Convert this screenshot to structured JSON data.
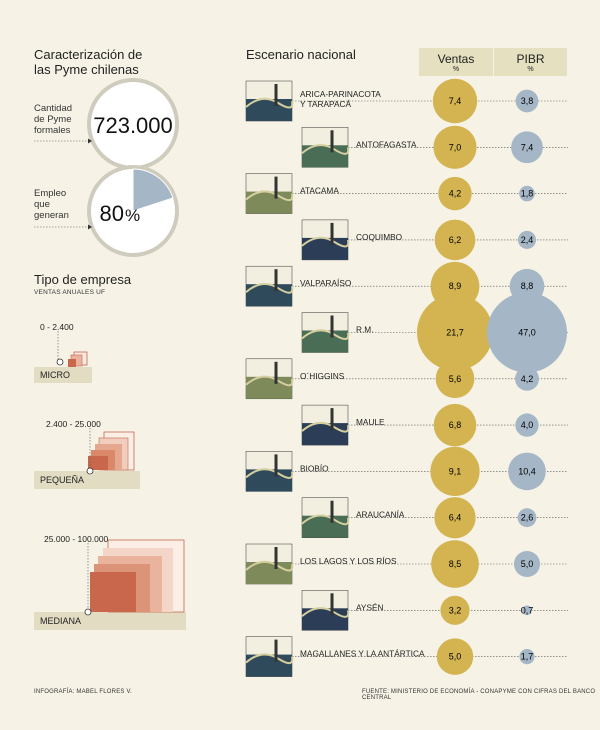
{
  "left": {
    "title_line1": "Caracterización de",
    "title_line2": "las Pyme chilenas",
    "stat1": {
      "label_l1": "Cantidad",
      "label_l2": "de Pyme",
      "label_l3": "formales",
      "value": "723.000"
    },
    "stat2": {
      "label_l1": "Empleo",
      "label_l2": "que",
      "label_l3": "generan",
      "value": "80",
      "unit": "%",
      "fraction": 0.8
    },
    "tipo_title": "Tipo de empresa",
    "tipo_subtitle": "VENTAS ANUALES UF",
    "sizes": [
      {
        "name": "MICRO",
        "range": "0 - 2.400"
      },
      {
        "name": "PEQUEÑA",
        "range": "2.400 - 25.000"
      },
      {
        "name": "MEDIANA",
        "range": "25.000 - 100.000"
      }
    ]
  },
  "chart_data": {
    "type": "bubble",
    "title": "Escenario nacional",
    "columns": [
      {
        "name": "Ventas",
        "unit": "%"
      },
      {
        "name": "PIBR",
        "unit": "%"
      }
    ],
    "categories": [
      "ARICA-PARINACOTA|Y TARAPACÁ",
      "ANTOFAGASTA",
      "ATACAMA",
      "COQUIMBO",
      "VALPARAÍSO",
      "R.M.",
      "O´HIGGINS",
      "MAULE",
      "BIOBÍO",
      "ARAUCANÍA",
      "LOS LAGOS Y LOS RÍOS",
      "AYSÉN",
      "MAGALLANES Y LA ANTÁRTICA"
    ],
    "series": [
      {
        "name": "Ventas",
        "color": "#d3b451",
        "values": [
          7.4,
          7.0,
          4.2,
          6.2,
          8.9,
          21.7,
          5.6,
          6.8,
          9.1,
          6.4,
          8.5,
          3.2,
          5.0
        ],
        "labels": [
          "7,4",
          "7,0",
          "4,2",
          "6,2",
          "8,9",
          "21,7",
          "5,6",
          "6,8",
          "9,1",
          "6,4",
          "8,5",
          "3,2",
          "5,0"
        ]
      },
      {
        "name": "PIBR",
        "color": "#a5b6c6",
        "values": [
          3.8,
          7.4,
          1.8,
          2.4,
          8.8,
          47.0,
          4.2,
          4.0,
          10.4,
          2.6,
          5.0,
          0.7,
          1.7
        ],
        "labels": [
          "3,8",
          "7,4",
          "1,8",
          "2,4",
          "8,8",
          "47,0",
          "4,2",
          "4,0",
          "10,4",
          "2,6",
          "5,0",
          "0,7",
          "1,7"
        ]
      }
    ]
  },
  "footer": {
    "credit": "INFOGRAFÍA: MABEL FLORES V.",
    "source": "FUENTE: MINISTERIO DE ECONOMÍA - CONAPYME CON CIFRAS DEL BANCO CENTRAL"
  },
  "colors": {
    "background": "#f6f3e6",
    "ventas": "#d3b451",
    "pibr": "#a5b6c6",
    "header": "#e4e0c0"
  }
}
